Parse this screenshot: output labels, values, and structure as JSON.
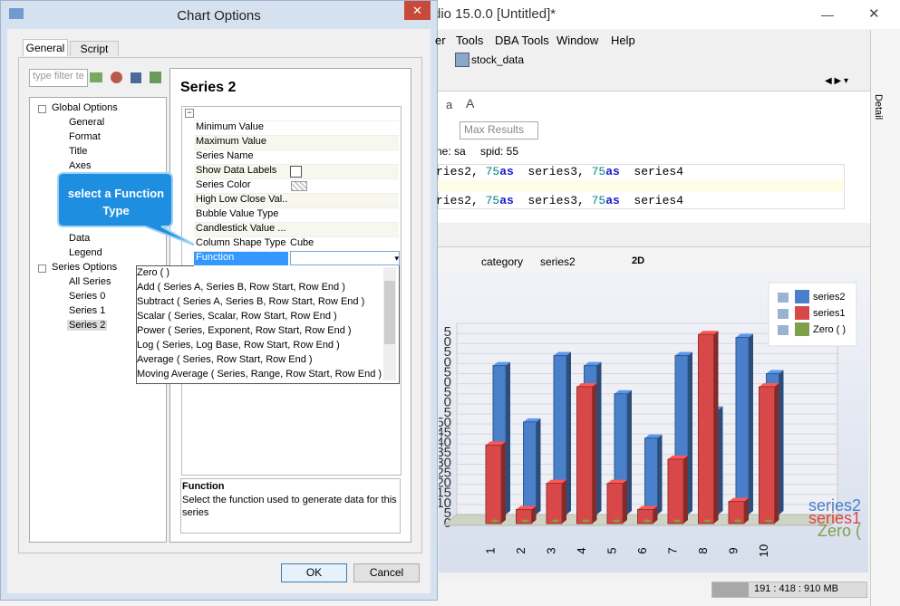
{
  "app": {
    "title": "dio 15.0.0 [Untitled]*",
    "menu": [
      "er",
      "Tools",
      "DBA Tools",
      "Window",
      "Help"
    ],
    "tab": "stock_data",
    "font_buttons": [
      "a",
      "A"
    ],
    "max_results": "Max Results",
    "user": "ne: sa",
    "spid": "spid: 55",
    "code": [
      [
        "ries2, ",
        "75",
        " as ",
        "series3, ",
        "75",
        " as ",
        "series4"
      ],
      [
        "ries2, ",
        "75",
        " as ",
        "series3, ",
        "75",
        " as ",
        "series4"
      ]
    ],
    "detail": "Detail",
    "chart_toolbar": [
      "category",
      "series2",
      "2D"
    ],
    "status": "191 : 418 : 910 MB"
  },
  "dialog": {
    "title": "Chart Options",
    "tabs": [
      "General",
      "Script"
    ],
    "filter_placeholder": "type filter te",
    "tree": [
      {
        "label": "Global Options",
        "children": [
          "General",
          "Format",
          "Title",
          "Axes",
          "Data",
          "Legend"
        ]
      },
      {
        "label": "Series Options",
        "children": [
          "All Series",
          "Series 0",
          "Series 1",
          "Series 2"
        ]
      }
    ],
    "panel_title": "Series 2",
    "properties": [
      {
        "name": "Minimum Value"
      },
      {
        "name": "Maximum Value"
      },
      {
        "name": "Series Name"
      },
      {
        "name": "Show Data Labels"
      },
      {
        "name": "Series Color"
      },
      {
        "name": "High Low Close Val..."
      },
      {
        "name": "Bubble Value Type"
      },
      {
        "name": "Candlestick Value ..."
      },
      {
        "name": "Column Shape Type",
        "value": "Cube"
      },
      {
        "name": "Function"
      }
    ],
    "function_options": [
      "Zero ( )",
      "Add ( Series A, Series B, Row Start, Row End )",
      "Subtract ( Series A, Series B, Row Start, Row End )",
      "Scalar ( Series, Scalar, Row Start, Row End )",
      "Power ( Series, Exponent, Row Start, Row End )",
      "Log ( Series, Log Base, Row Start, Row End )",
      "Average ( Series, Row Start, Row End )",
      "Moving Average ( Series, Range, Row Start, Row End )"
    ],
    "callout": "select a Function Type",
    "help_title": "Function",
    "help_text": "Select the function used to generate data for this series",
    "ok": "OK",
    "cancel": "Cancel"
  },
  "chart_data": {
    "type": "bar3d",
    "categories": [
      "1",
      "2",
      "3",
      "4",
      "5",
      "6",
      "7",
      "8",
      "9",
      "10"
    ],
    "series": [
      {
        "name": "series2",
        "color": "#4a7fc9",
        "values": [
          74,
          46,
          79,
          74,
          60,
          38,
          79,
          52,
          88,
          70
        ]
      },
      {
        "name": "series1",
        "color": "#d94848",
        "values": [
          39,
          7,
          20,
          68,
          20,
          7,
          32,
          94,
          11,
          68
        ]
      },
      {
        "name": "Zero ( )",
        "color": "#7fa04a",
        "values": [
          0,
          0,
          0,
          0,
          0,
          0,
          0,
          0,
          0,
          0
        ]
      }
    ],
    "big_labels": [
      "series2",
      "series1",
      "Zero ("
    ],
    "ylim": [
      0,
      95
    ],
    "yticks": [
      0,
      5,
      10,
      15,
      20,
      25,
      30,
      35,
      40,
      45,
      50,
      {
        "value": 55,
        "label": "5"
      },
      {
        "value": 60,
        "label": "0"
      },
      {
        "value": 65,
        "label": "5"
      },
      {
        "value": 70,
        "label": "0"
      },
      {
        "value": 75,
        "label": "5"
      },
      {
        "value": 80,
        "label": "0"
      },
      {
        "value": 85,
        "label": "5"
      },
      {
        "value": 90,
        "label": "0"
      },
      {
        "value": 95,
        "label": "5"
      }
    ]
  }
}
